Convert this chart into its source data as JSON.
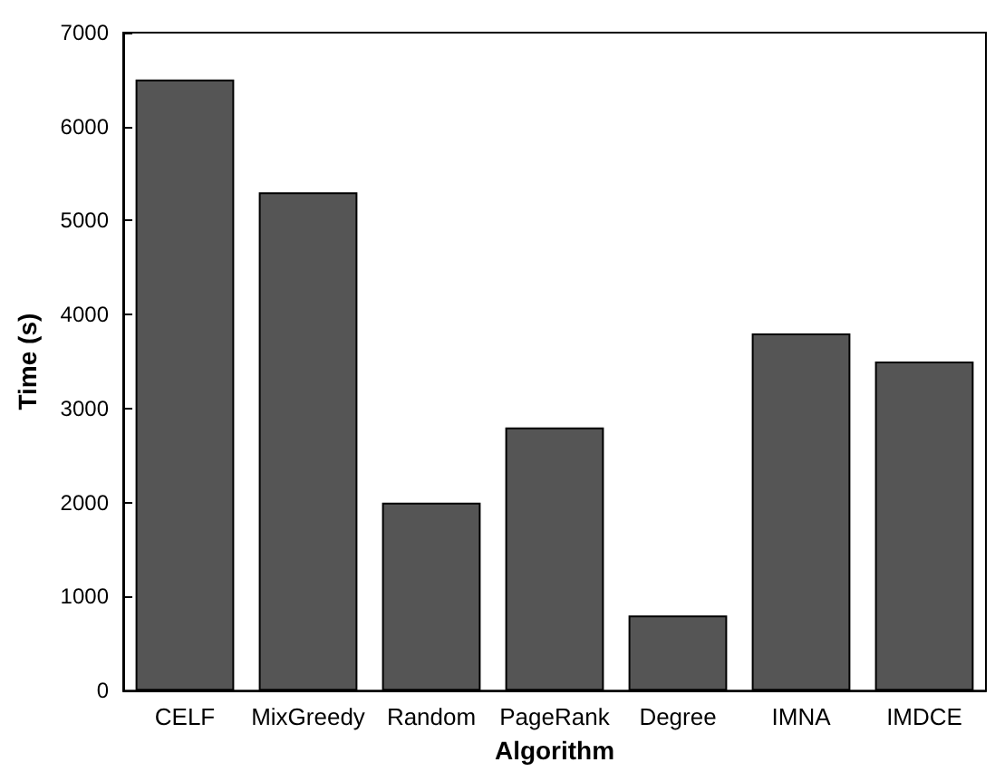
{
  "chart_data": {
    "type": "bar",
    "xlabel": "Algorithm",
    "ylabel": "Time (s)",
    "categories": [
      "CELF",
      "MixGreedy",
      "Random",
      "PageRank",
      "Degree",
      "IMNA",
      "IMDCE"
    ],
    "values": [
      6500,
      5300,
      2000,
      2800,
      800,
      3800,
      3500
    ],
    "color": "#555555",
    "ylim": [
      0,
      7000
    ],
    "yticks": [
      0,
      1000,
      2000,
      3000,
      4000,
      5000,
      6000,
      7000
    ],
    "grid": false
  }
}
